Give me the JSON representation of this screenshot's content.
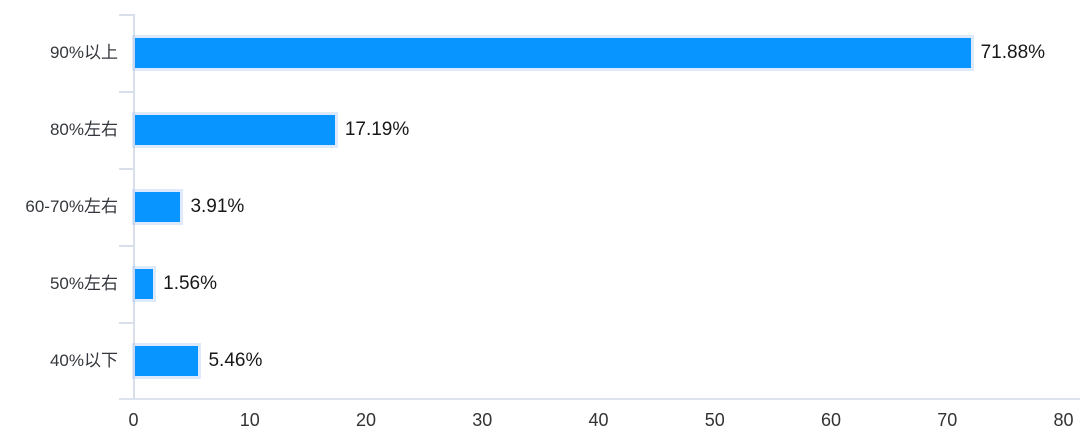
{
  "chart_data": {
    "type": "bar",
    "orientation": "horizontal",
    "title": "",
    "categories": [
      "90%以上",
      "80%左右",
      "60-70%左右",
      "50%左右",
      "40%以下"
    ],
    "values": [
      71.88,
      17.19,
      3.91,
      1.56,
      5.46
    ],
    "value_labels": [
      "71.88%",
      "17.19%",
      "3.91%",
      "1.56%",
      "5.46%"
    ],
    "x_ticks": [
      "0",
      "10",
      "20",
      "30",
      "40",
      "50",
      "60",
      "70",
      "80"
    ],
    "x_tick_values": [
      0,
      10,
      20,
      30,
      40,
      50,
      60,
      70,
      80
    ],
    "xlim": [
      0,
      80
    ],
    "grid": false,
    "legend": "none",
    "bar_color": "#0995ff",
    "axis_color": "#d9deeb",
    "category_label_color": "#34373d",
    "value_label_color": "#17181a",
    "tick_label_color": "#333333"
  }
}
